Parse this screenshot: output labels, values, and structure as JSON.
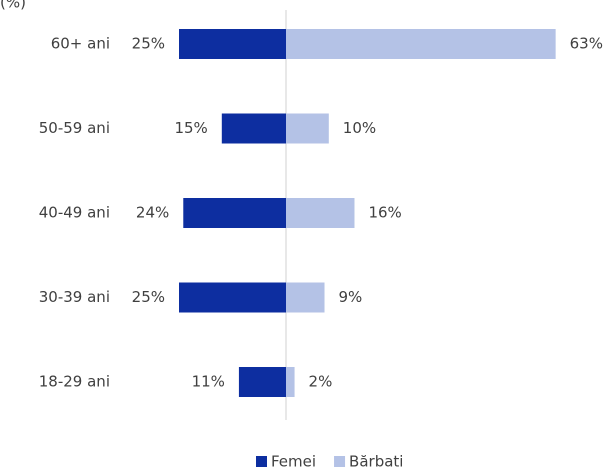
{
  "chart_data": {
    "type": "bar",
    "orientation": "horizontal",
    "layout": "diverging",
    "unit_label": "(%)",
    "categories": [
      "60+ ani",
      "50-59 ani",
      "40-49 ani",
      "30-39 ani",
      "18-29 ani"
    ],
    "series": [
      {
        "name": "Femei",
        "color": "#0d2ea0",
        "side": "left",
        "values": [
          25,
          15,
          24,
          25,
          11
        ],
        "value_labels": [
          "25%",
          "15%",
          "24%",
          "25%",
          "11%"
        ]
      },
      {
        "name": "Bărbati",
        "color": "#b4c2e6",
        "side": "right",
        "values": [
          63,
          10,
          16,
          9,
          2
        ],
        "value_labels": [
          "63%",
          "10%",
          "16%",
          "9%",
          "2%"
        ]
      }
    ],
    "legend": "bottom"
  }
}
